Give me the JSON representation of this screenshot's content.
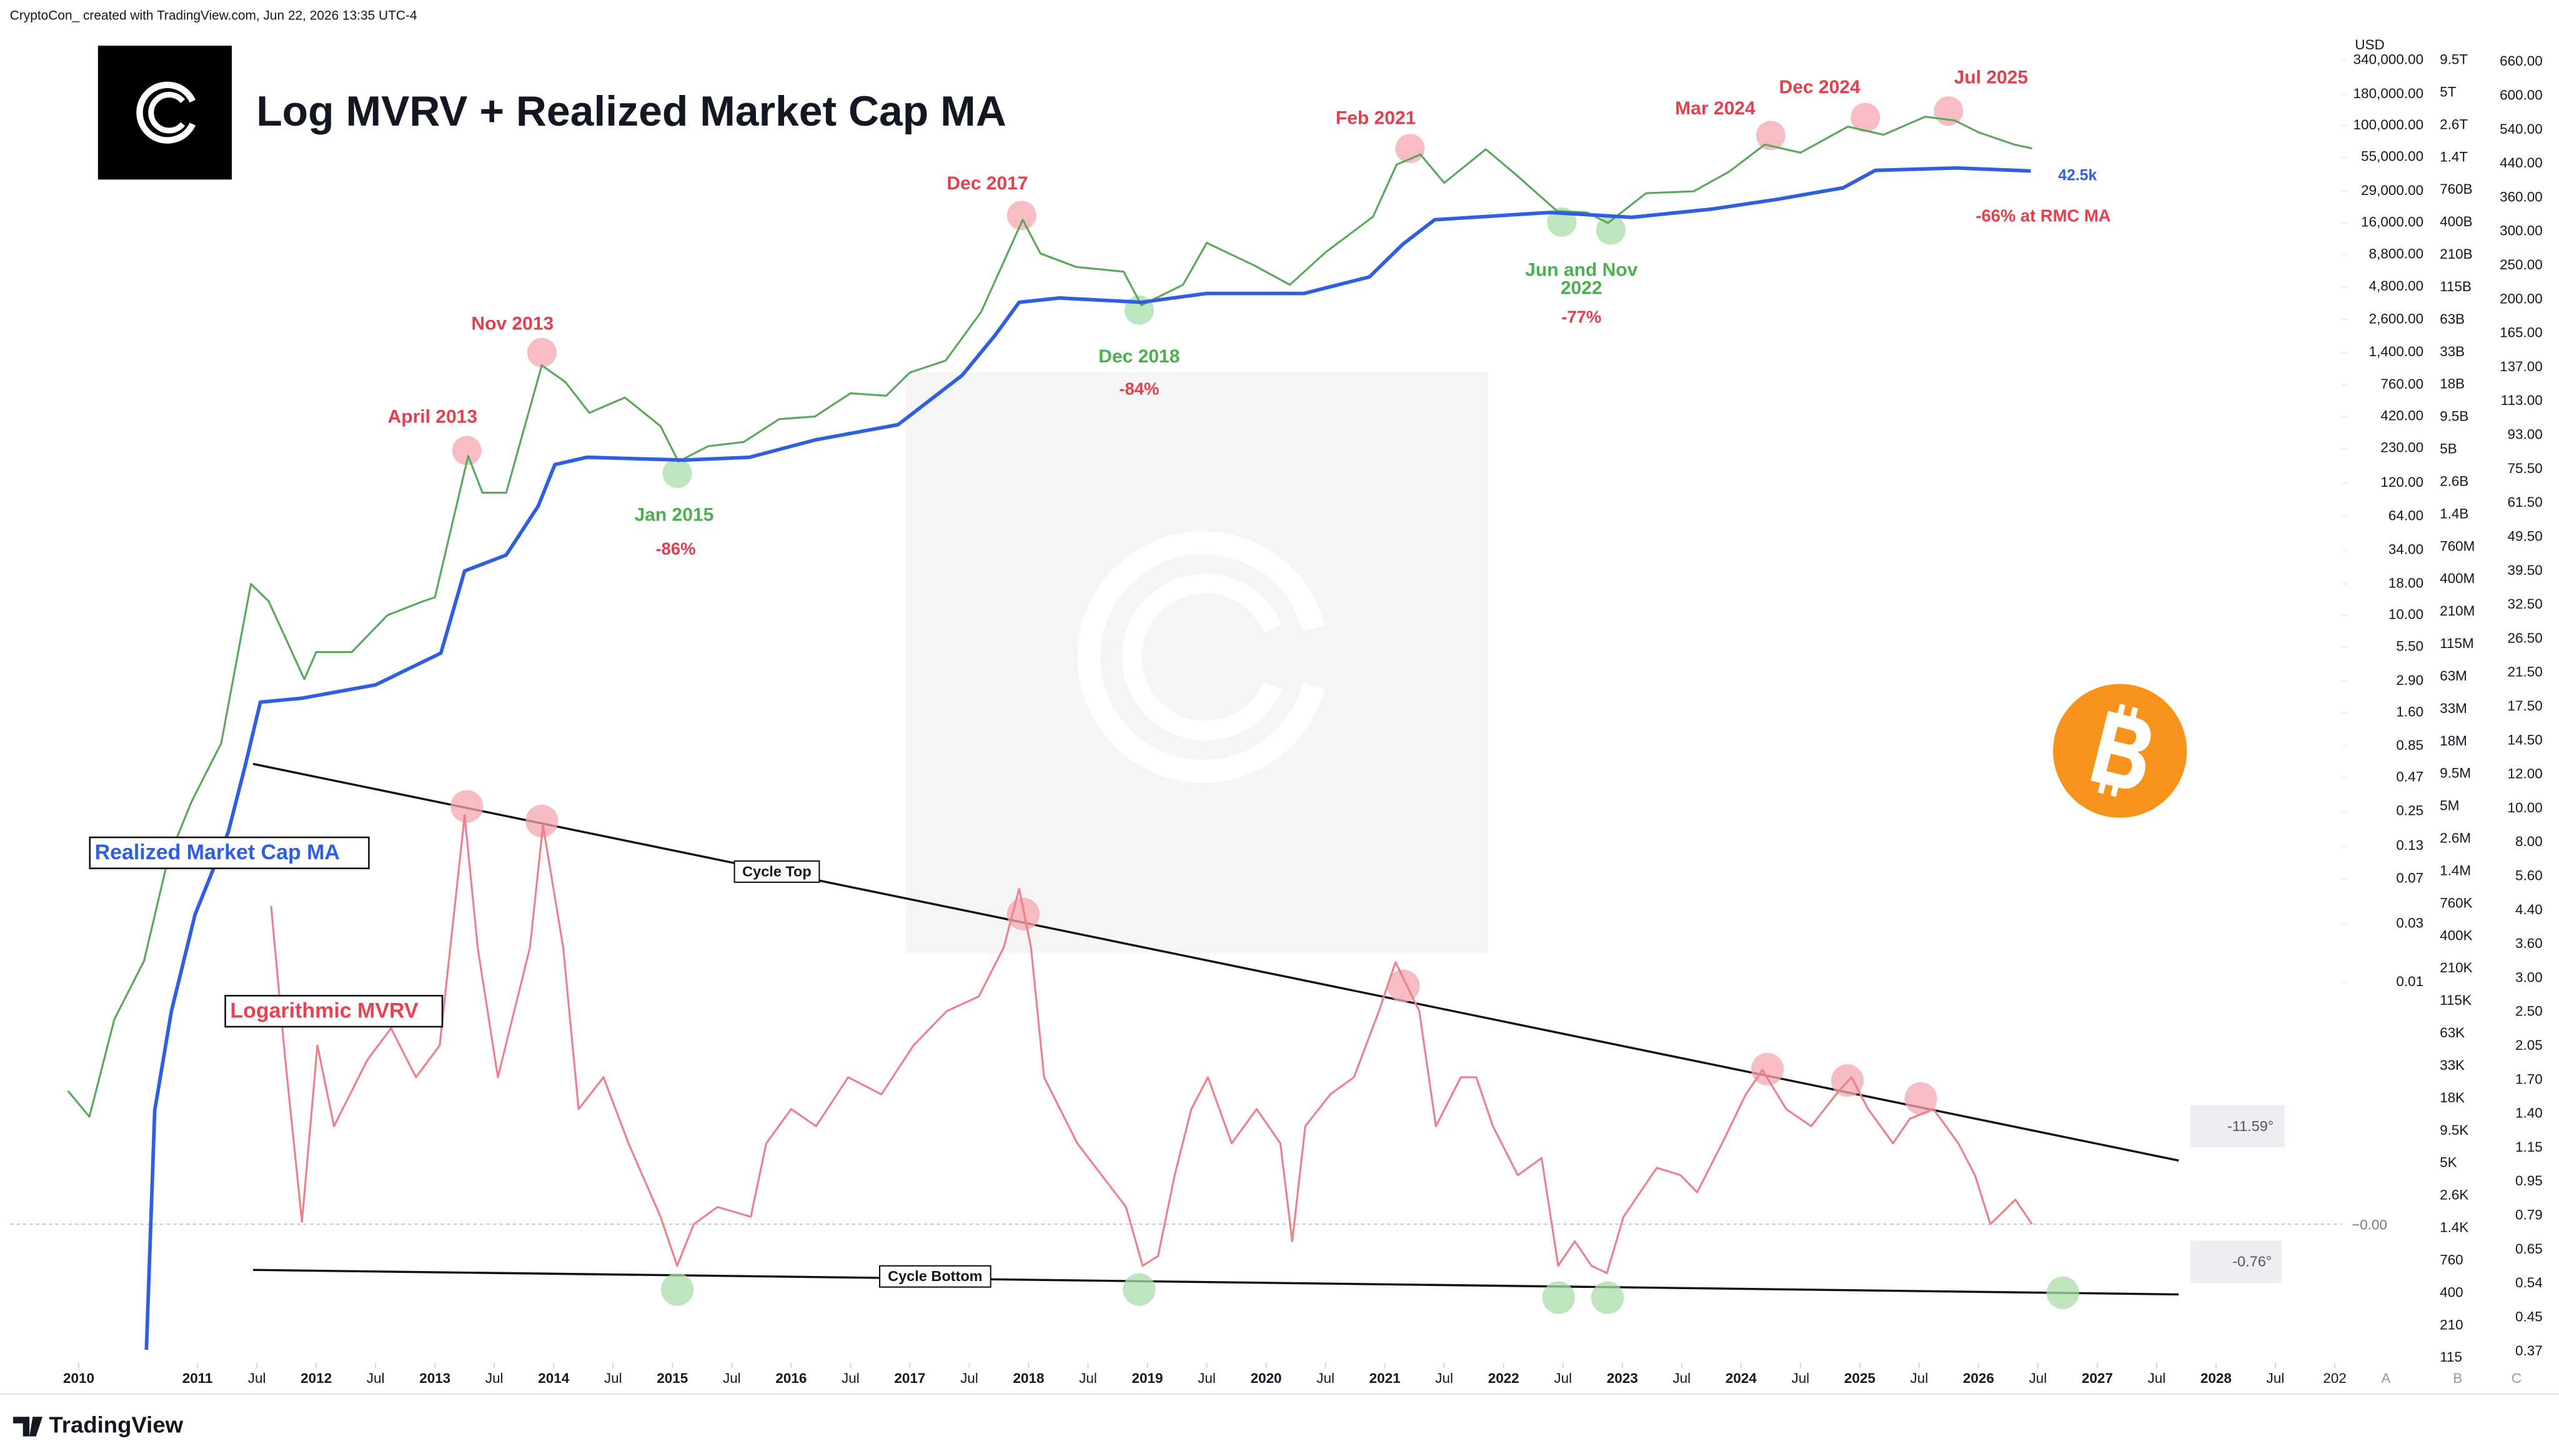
{
  "header": "CryptoCon_ created with TradingView.com, Jun 22, 2026 13:35 UTC-4",
  "footer": "TradingView",
  "chart_data": {
    "type": "line",
    "title": "Log MVRV + Realized Market Cap MA",
    "currency": "USD",
    "log_y": true,
    "grid": false,
    "xlim": [
      2009.42,
      2029.06
    ],
    "xticks": [
      2010,
      2011,
      {
        "value": 2011.5,
        "label": "Jul"
      },
      2012,
      {
        "value": 2012.5,
        "label": "Jul"
      },
      2013,
      {
        "value": 2013.5,
        "label": "Jul"
      },
      2014,
      {
        "value": 2014.5,
        "label": "Jul"
      },
      2015,
      {
        "value": 2015.5,
        "label": "Jul"
      },
      2016,
      {
        "value": 2016.5,
        "label": "Jul"
      },
      2017,
      {
        "value": 2017.5,
        "label": "Jul"
      },
      2018,
      {
        "value": 2018.5,
        "label": "Jul"
      },
      2019,
      {
        "value": 2019.5,
        "label": "Jul"
      },
      2020,
      {
        "value": 2020.5,
        "label": "Jul"
      },
      2021,
      {
        "value": 2021.5,
        "label": "Jul"
      },
      2022,
      {
        "value": 2022.5,
        "label": "Jul"
      },
      2023,
      {
        "value": 2023.5,
        "label": "Jul"
      },
      2024,
      {
        "value": 2024.5,
        "label": "Jul"
      },
      2025,
      {
        "value": 2025.5,
        "label": "Jul"
      },
      2026,
      {
        "value": 2026.5,
        "label": "Jul"
      },
      2027,
      {
        "value": 2027.5,
        "label": "Jul"
      },
      2028,
      {
        "value": 2028.5,
        "label": "Jul"
      },
      {
        "value": 2029,
        "label": "202"
      }
    ],
    "ylim": [
      7.8e-06,
      1060000
    ],
    "yticks": [
      {
        "value": 340000,
        "label": "340,000.00"
      },
      {
        "value": 180000,
        "label": "180,000.00"
      },
      {
        "value": 100000,
        "label": "100,000.00"
      },
      {
        "value": 55000,
        "label": "55,000.00"
      },
      {
        "value": 29000,
        "label": "29,000.00"
      },
      {
        "value": 16000,
        "label": "16,000.00"
      },
      {
        "value": 8800,
        "label": "8,800.00"
      },
      {
        "value": 4800,
        "label": "4,800.00"
      },
      {
        "value": 2600,
        "label": "2,600.00"
      },
      {
        "value": 1400,
        "label": "1,400.00"
      },
      {
        "value": 760,
        "label": "760.00"
      },
      {
        "value": 420,
        "label": "420.00"
      },
      {
        "value": 230,
        "label": "230.00"
      },
      {
        "value": 120,
        "label": "120.00"
      },
      {
        "value": 64,
        "label": "64.00"
      },
      {
        "value": 34,
        "label": "34.00"
      },
      {
        "value": 18,
        "label": "18.00"
      },
      {
        "value": 10,
        "label": "10.00"
      },
      {
        "value": 5.5,
        "label": "5.50"
      },
      {
        "value": 2.9,
        "label": "2.90"
      },
      {
        "value": 1.6,
        "label": "1.60"
      },
      0.85,
      0.47,
      0.25,
      0.13,
      0.07,
      0.03,
      0.01
    ],
    "y2lim": [
      -0.567,
      5
    ],
    "y2ticks": [
      {
        "value": 0,
        "label": "−0.00"
      }
    ],
    "cap_axis": [
      "9.5T",
      "5T",
      "2.6T",
      "1.4T",
      "760B",
      "400B",
      "210B",
      "115B",
      "63B",
      "33B",
      "18B",
      "9.5B",
      "5B",
      "2.6B",
      "1.4B",
      "760M",
      "400M",
      "210M",
      "115M",
      "63M",
      "33M",
      "18M",
      "9.5M",
      "5M",
      "2.6M",
      "1.4M",
      "760K",
      "400K",
      "210K",
      "115K",
      "63K",
      "33K",
      "18K",
      "9.5K",
      "5K",
      "2.6K",
      "1.4K",
      "760",
      "400",
      "210",
      "115"
    ],
    "right_axis": [
      "660.00",
      "600.00",
      "540.00",
      "440.00",
      "360.00",
      "300.00",
      "250.00",
      "200.00",
      "165.00",
      "137.00",
      "113.00",
      "93.00",
      "75.50",
      "61.50",
      "49.50",
      "39.50",
      "32.50",
      "26.50",
      "21.50",
      "17.50",
      "14.50",
      "12.00",
      "10.00",
      "8.00",
      "5.60",
      "4.40",
      "3.60",
      "3.00",
      "2.50",
      "2.05",
      "1.70",
      "1.40",
      "1.15",
      "0.95",
      "0.79",
      "0.65",
      "0.54",
      "0.45",
      "0.37"
    ],
    "pane_buttons": [
      "A",
      "B",
      "C"
    ],
    "series": [
      {
        "color": "#5aa85c",
        "x": [
          2009.91,
          2010.09,
          2010.3,
          2010.55,
          2010.75,
          2010.95,
          2011.2,
          2011.45,
          2011.6,
          2011.9,
          2012.0,
          2012.3,
          2012.6,
          2012.9,
          2013.0,
          2013.28,
          2013.4,
          2013.6,
          2013.9,
          2014.1,
          2014.3,
          2014.6,
          2014.9,
          2015.05,
          2015.3,
          2015.6,
          2015.9,
          2016.2,
          2016.5,
          2016.8,
          2017.0,
          2017.3,
          2017.6,
          2017.95,
          2018.1,
          2018.4,
          2018.8,
          2018.95,
          2019.3,
          2019.5,
          2019.9,
          2020.2,
          2020.5,
          2020.9,
          2021.1,
          2021.3,
          2021.5,
          2021.85,
          2022.1,
          2022.45,
          2022.7,
          2022.88,
          2023.2,
          2023.6,
          2023.9,
          2024.2,
          2024.5,
          2024.9,
          2025.2,
          2025.55,
          2025.8,
          2026.0,
          2026.3,
          2026.45
        ],
        "values": [
          0.0013,
          0.0008,
          0.005,
          0.015,
          0.1,
          0.3,
          0.9,
          18,
          13,
          3,
          5,
          5,
          10,
          13,
          14,
          200,
          100,
          100,
          1100,
          800,
          450,
          600,
          350,
          180,
          240,
          260,
          400,
          420,
          650,
          620,
          960,
          1200,
          3000,
          17000,
          9000,
          7000,
          6400,
          3400,
          5000,
          11000,
          7200,
          5000,
          9200,
          18000,
          48000,
          58000,
          34000,
          64000,
          40000,
          20000,
          19500,
          16000,
          28000,
          29000,
          42000,
          70000,
          60000,
          98000,
          84000,
          118000,
          110000,
          88000,
          70000,
          65000
        ]
      },
      {
        "name": "Realized Market Cap MA",
        "color": "#2e5fe0",
        "x": [
          2010.57,
          2010.64,
          2010.78,
          2010.98,
          2011.26,
          2011.4,
          2011.53,
          2011.88,
          2012.5,
          2013.05,
          2013.25,
          2013.6,
          2013.87,
          2014.01,
          2014.28,
          2015.1,
          2015.65,
          2016.2,
          2016.9,
          2017.44,
          2017.72,
          2017.92,
          2018.26,
          2018.95,
          2019.5,
          2020.32,
          2020.87,
          2021.15,
          2021.42,
          2022.39,
          2023.08,
          2023.76,
          2024.31,
          2024.86,
          2025.13,
          2025.82,
          2026.44
        ],
        "values": [
          1e-05,
          0.0009,
          0.0058,
          0.036,
          0.17,
          0.58,
          1.95,
          2.1,
          2.7,
          4.9,
          23,
          31,
          78,
          170,
          195,
          185,
          195,
          270,
          360,
          910,
          1950,
          3600,
          3900,
          3600,
          4250,
          4250,
          5800,
          10700,
          17000,
          19500,
          17800,
          20800,
          25000,
          31000,
          43000,
          45000,
          42500
        ]
      },
      {
        "name": "Logarithmic MVRV",
        "color": "#e8414f",
        "line_color": "#ef7f8a",
        "axis": "y2",
        "x": [
          2011.62,
          2011.74,
          2011.88,
          2012.01,
          2012.15,
          2012.43,
          2012.63,
          2012.84,
          2013.04,
          2013.25,
          2013.36,
          2013.53,
          2013.8,
          2013.91,
          2014.08,
          2014.21,
          2014.42,
          2014.63,
          2014.9,
          2015.04,
          2015.18,
          2015.38,
          2015.66,
          2015.79,
          2016.0,
          2016.21,
          2016.48,
          2016.76,
          2017.03,
          2017.31,
          2017.58,
          2017.79,
          2017.92,
          2018.02,
          2018.13,
          2018.41,
          2018.82,
          2018.96,
          2019.09,
          2019.23,
          2019.37,
          2019.51,
          2019.71,
          2019.92,
          2020.12,
          2020.22,
          2020.33,
          2020.54,
          2020.74,
          2020.95,
          2021.09,
          2021.29,
          2021.43,
          2021.64,
          2021.77,
          2021.91,
          2022.12,
          2022.32,
          2022.46,
          2022.6,
          2022.74,
          2022.87,
          2023.01,
          2023.15,
          2023.29,
          2023.49,
          2023.63,
          2023.84,
          2024.04,
          2024.18,
          2024.38,
          2024.59,
          2024.8,
          2024.93,
          2025.07,
          2025.28,
          2025.42,
          2025.62,
          2025.83,
          2025.97,
          2026.1,
          2026.31,
          2026.45
        ],
        "values": [
          1.3,
          0.67,
          0.01,
          0.73,
          0.4,
          0.67,
          0.8,
          0.6,
          0.73,
          1.67,
          1.13,
          0.6,
          1.13,
          1.63,
          1.13,
          0.47,
          0.6,
          0.33,
          0.03,
          -0.17,
          0.0,
          0.07,
          0.03,
          0.33,
          0.47,
          0.4,
          0.6,
          0.53,
          0.73,
          0.87,
          0.93,
          1.13,
          1.37,
          1.13,
          0.6,
          0.33,
          0.07,
          -0.17,
          -0.13,
          0.2,
          0.47,
          0.6,
          0.33,
          0.47,
          0.33,
          -0.07,
          0.4,
          0.53,
          0.6,
          0.87,
          1.07,
          0.87,
          0.4,
          0.6,
          0.6,
          0.4,
          0.2,
          0.27,
          -0.17,
          -0.07,
          -0.17,
          -0.2,
          0.03,
          0.13,
          0.23,
          0.2,
          0.13,
          0.33,
          0.53,
          0.63,
          0.47,
          0.4,
          0.53,
          0.6,
          0.47,
          0.33,
          0.43,
          0.47,
          0.33,
          0.2,
          0.0,
          0.1,
          0.0
        ]
      }
    ],
    "annotations": [
      {
        "text": "April 2013",
        "color": "#e2404e"
      },
      {
        "text": "Nov 2013",
        "color": "#e2404e"
      },
      {
        "text": "Dec 2017",
        "color": "#e2404e"
      },
      {
        "text": "Feb 2021",
        "color": "#e2404e"
      },
      {
        "text": "Mar 2024",
        "color": "#e2404e"
      },
      {
        "text": "Dec 2024",
        "color": "#e2404e"
      },
      {
        "text": "Jul 2025",
        "color": "#e2404e"
      },
      {
        "text": "Jan 2015",
        "color": "#4caf50"
      },
      {
        "text": "Dec 2018",
        "color": "#4caf50"
      },
      {
        "text": "Jun and Nov",
        "color": "#4caf50"
      },
      {
        "text": "2022",
        "color": "#4caf50"
      },
      {
        "text": "-86%",
        "color": "#e2404e"
      },
      {
        "text": "-84%",
        "color": "#e2404e"
      },
      {
        "text": "-77%",
        "color": "#e2404e"
      },
      {
        "text": "-66% at RMC MA",
        "color": "#e2404e"
      },
      {
        "text": "42.5k",
        "color": "#2e5fe0"
      }
    ],
    "drawings": [
      "Cycle Top",
      "Cycle Bottom",
      "-11.59°",
      "-0.76°"
    ]
  }
}
